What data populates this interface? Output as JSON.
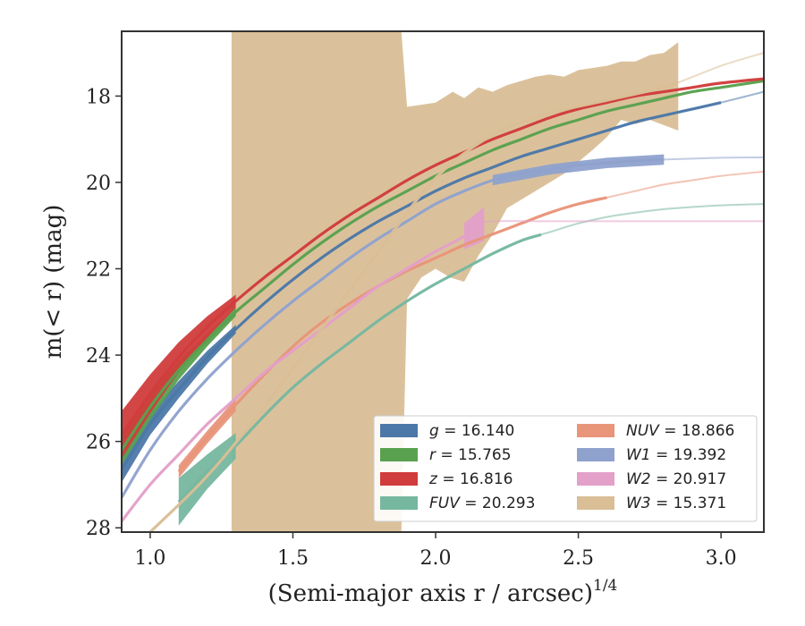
{
  "chart_data": {
    "type": "line",
    "xlabel_main": "(Semi-major axis r / arcsec)",
    "xlabel_exp": "1/4",
    "ylabel_main": "m(< r) (mag)",
    "xlim": [
      0.9,
      3.15
    ],
    "ylim": [
      28.1,
      16.5
    ],
    "y_inverted": true,
    "xticks": [
      1.0,
      1.5,
      2.0,
      2.5,
      3.0
    ],
    "xtick_labels": [
      "1.0",
      "1.5",
      "2.0",
      "2.5",
      "3.0"
    ],
    "yticks": [
      18,
      20,
      22,
      24,
      26,
      28
    ],
    "ytick_labels": [
      "18",
      "20",
      "22",
      "24",
      "26",
      "28"
    ],
    "grid": false,
    "legend_position": "lower-right",
    "series": [
      {
        "name": "g = 16.140",
        "color": "#4C78A8",
        "x": [
          0.9,
          1.0,
          1.1,
          1.2,
          1.3,
          1.4,
          1.5,
          1.6,
          1.7,
          1.8,
          1.9,
          2.0,
          2.1,
          2.2,
          2.3,
          2.4,
          2.5,
          2.6,
          2.7,
          2.8,
          2.9,
          3.0,
          3.15
        ],
        "y": [
          26.65,
          25.6,
          24.8,
          24.05,
          23.4,
          22.8,
          22.25,
          21.75,
          21.3,
          20.9,
          20.55,
          20.2,
          19.9,
          19.65,
          19.4,
          19.2,
          19.0,
          18.8,
          18.6,
          18.45,
          18.3,
          18.15,
          17.9
        ],
        "band_x": [
          0.9,
          1.0,
          1.1,
          1.2,
          1.3
        ],
        "band_halfwidth": [
          0.3,
          0.25,
          0.2,
          0.15,
          0.1
        ],
        "measured_to": 3.0
      },
      {
        "name": "r = 15.765",
        "color": "#59A14F",
        "x": [
          0.9,
          1.0,
          1.1,
          1.2,
          1.3,
          1.4,
          1.5,
          1.6,
          1.7,
          1.8,
          1.9,
          2.0,
          2.1,
          2.2,
          2.3,
          2.4,
          2.5,
          2.6,
          2.7,
          2.8,
          2.9,
          3.0,
          3.15
        ],
        "y": [
          26.2,
          25.2,
          24.35,
          23.65,
          23.0,
          22.45,
          21.9,
          21.4,
          20.95,
          20.55,
          20.2,
          19.85,
          19.55,
          19.25,
          19.0,
          18.75,
          18.55,
          18.35,
          18.2,
          18.05,
          17.9,
          17.8,
          17.65
        ],
        "band_x": [
          0.9,
          1.0,
          1.1,
          1.2,
          1.3
        ],
        "band_halfwidth": [
          0.35,
          0.3,
          0.22,
          0.15,
          0.1
        ],
        "measured_to": 3.15
      },
      {
        "name": "z = 16.816",
        "color": "#D13C3C",
        "x": [
          0.9,
          1.0,
          1.1,
          1.2,
          1.3,
          1.4,
          1.5,
          1.6,
          1.7,
          1.8,
          1.9,
          2.0,
          2.1,
          2.2,
          2.3,
          2.4,
          2.5,
          2.6,
          2.7,
          2.8,
          2.9,
          3.0,
          3.15
        ],
        "y": [
          25.85,
          24.9,
          24.05,
          23.35,
          22.75,
          22.2,
          21.7,
          21.2,
          20.75,
          20.35,
          19.95,
          19.6,
          19.3,
          19.0,
          18.75,
          18.5,
          18.3,
          18.15,
          18.0,
          17.9,
          17.8,
          17.7,
          17.6
        ],
        "band_x": [
          0.9,
          1.0,
          1.1,
          1.2,
          1.3
        ],
        "band_halfwidth": [
          0.55,
          0.45,
          0.35,
          0.25,
          0.15
        ],
        "measured_to": 3.15
      },
      {
        "name": "FUV = 20.293",
        "color": "#76B7A0",
        "x": [
          1.1,
          1.2,
          1.3,
          1.4,
          1.5,
          1.6,
          1.7,
          1.8,
          1.9,
          2.0,
          2.1,
          2.2,
          2.3,
          2.4,
          2.5,
          2.6,
          2.7,
          2.8,
          2.9,
          3.0,
          3.15
        ],
        "y": [
          27.4,
          26.7,
          26.1,
          25.4,
          24.75,
          24.2,
          23.7,
          23.2,
          22.75,
          22.35,
          22.0,
          21.65,
          21.35,
          21.15,
          20.95,
          20.8,
          20.7,
          20.62,
          20.57,
          20.53,
          20.5
        ],
        "band_x": [
          1.1,
          1.2,
          1.3
        ],
        "band_halfwidth": [
          0.55,
          0.4,
          0.3
        ],
        "measured_to": 2.37
      },
      {
        "name": "NUV = 18.866",
        "color": "#E8957A",
        "x": [
          1.1,
          1.2,
          1.3,
          1.4,
          1.5,
          1.6,
          1.7,
          1.8,
          1.9,
          2.0,
          2.1,
          2.2,
          2.3,
          2.4,
          2.5,
          2.6,
          2.7,
          2.8,
          2.9,
          3.0,
          3.15
        ],
        "y": [
          26.7,
          25.9,
          25.15,
          24.45,
          23.8,
          23.25,
          22.8,
          22.4,
          22.05,
          21.75,
          21.45,
          21.2,
          20.95,
          20.7,
          20.5,
          20.35,
          20.2,
          20.05,
          19.95,
          19.85,
          19.75
        ],
        "band_x": [
          1.1,
          1.2,
          1.3
        ],
        "band_halfwidth": [
          0.15,
          0.15,
          0.15
        ],
        "measured_to": 2.6
      },
      {
        "name": "W1 = 19.392",
        "color": "#8FA2CE",
        "x": [
          0.9,
          1.0,
          1.1,
          1.2,
          1.3,
          1.4,
          1.5,
          1.6,
          1.7,
          1.8,
          1.9,
          2.0,
          2.1,
          2.2,
          2.3,
          2.4,
          2.5,
          2.6,
          2.7,
          2.8,
          2.9,
          3.0,
          3.15
        ],
        "y": [
          27.3,
          26.2,
          25.3,
          24.55,
          23.9,
          23.3,
          22.75,
          22.25,
          21.75,
          21.3,
          20.9,
          20.5,
          20.2,
          19.95,
          19.8,
          19.7,
          19.6,
          19.55,
          19.5,
          19.47,
          19.45,
          19.43,
          19.42
        ],
        "band_x": [
          2.2,
          2.4,
          2.6,
          2.8
        ],
        "band_halfwidth": [
          0.12,
          0.12,
          0.12,
          0.12
        ],
        "measured_to": 2.8
      },
      {
        "name": "W2 = 20.917",
        "color": "#E3A0C9",
        "x": [
          0.9,
          1.0,
          1.1,
          1.2,
          1.3,
          1.4,
          1.5,
          1.6,
          1.7,
          1.8,
          1.9,
          2.0,
          2.1,
          2.15,
          2.2,
          2.4,
          2.6,
          2.8,
          3.0,
          3.15
        ],
        "y": [
          27.85,
          27.0,
          26.3,
          25.6,
          25.0,
          24.4,
          23.9,
          23.4,
          22.9,
          22.4,
          22.0,
          21.6,
          21.25,
          21.0,
          20.9,
          20.9,
          20.9,
          20.9,
          20.9,
          20.9
        ],
        "band_x": [
          2.1,
          2.17
        ],
        "band_halfwidth": [
          0.3,
          0.4
        ],
        "measured_to": 2.17
      },
      {
        "name": "W3 = 15.371",
        "color": "#D9BE96",
        "x": [
          1.0,
          1.2,
          1.4,
          1.6,
          1.8,
          2.0,
          2.2,
          2.4,
          2.6,
          2.8,
          3.0,
          3.15
        ],
        "y": [
          28.1,
          26.8,
          25.2,
          23.4,
          21.6,
          19.9,
          18.9,
          18.4,
          18.1,
          17.8,
          17.3,
          17.0
        ],
        "band_upper_x": [
          1.285,
          1.285,
          1.88,
          1.9,
          1.95,
          2.0,
          2.06,
          2.1,
          2.15,
          2.2,
          2.25,
          2.3,
          2.35,
          2.4,
          2.45,
          2.5,
          2.55,
          2.6,
          2.65,
          2.7,
          2.75,
          2.8,
          2.85,
          2.85
        ],
        "band_upper_y": [
          28.1,
          16.5,
          16.5,
          18.25,
          18.2,
          18.15,
          17.9,
          18.05,
          17.8,
          17.9,
          17.75,
          17.65,
          17.55,
          17.5,
          17.55,
          17.4,
          17.35,
          17.3,
          17.2,
          17.2,
          17.05,
          17.0,
          16.75,
          18.8
        ],
        "band_lower_x": [
          2.85,
          2.75,
          2.7,
          2.65,
          2.6,
          2.55,
          2.45,
          2.35,
          2.25,
          2.2,
          2.15,
          2.1,
          2.05,
          2.0,
          1.95,
          1.9,
          1.88,
          1.87
        ],
        "band_lower_y": [
          18.8,
          18.55,
          18.65,
          18.55,
          18.95,
          19.25,
          19.8,
          20.2,
          20.6,
          21.2,
          21.7,
          22.3,
          22.2,
          22.0,
          22.2,
          22.7,
          28.1,
          28.1
        ],
        "band_left_lower_y": 23.1,
        "measured_to": 2.85
      }
    ]
  }
}
